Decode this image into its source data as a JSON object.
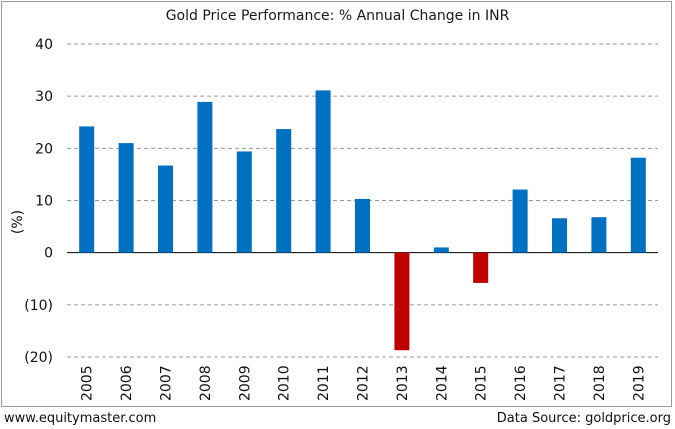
{
  "chart_data": {
    "type": "bar",
    "title": "Gold Price Performance: % Annual Change in INR",
    "xlabel": "",
    "ylabel": "(%)",
    "ylim": [
      -20,
      40
    ],
    "yticks": [
      40,
      30,
      20,
      10,
      0,
      -10,
      -20
    ],
    "ytick_labels": [
      "40",
      "30",
      "20",
      "10",
      "0",
      "(10)",
      "(20)"
    ],
    "categories": [
      "2005",
      "2006",
      "2007",
      "2008",
      "2009",
      "2010",
      "2011",
      "2012",
      "2013",
      "2014",
      "2015",
      "2016",
      "2017",
      "2018",
      "2019"
    ],
    "values": [
      24.2,
      21.0,
      16.7,
      28.9,
      19.4,
      23.7,
      31.1,
      10.3,
      -18.7,
      1.0,
      -5.8,
      12.1,
      6.6,
      6.8,
      18.2
    ],
    "grid": true,
    "colors": {
      "positive": "#0070c0",
      "negative": "#c00000"
    }
  },
  "footer": {
    "left": "www.equitymaster.com",
    "right": "Data Source: goldprice.org"
  }
}
